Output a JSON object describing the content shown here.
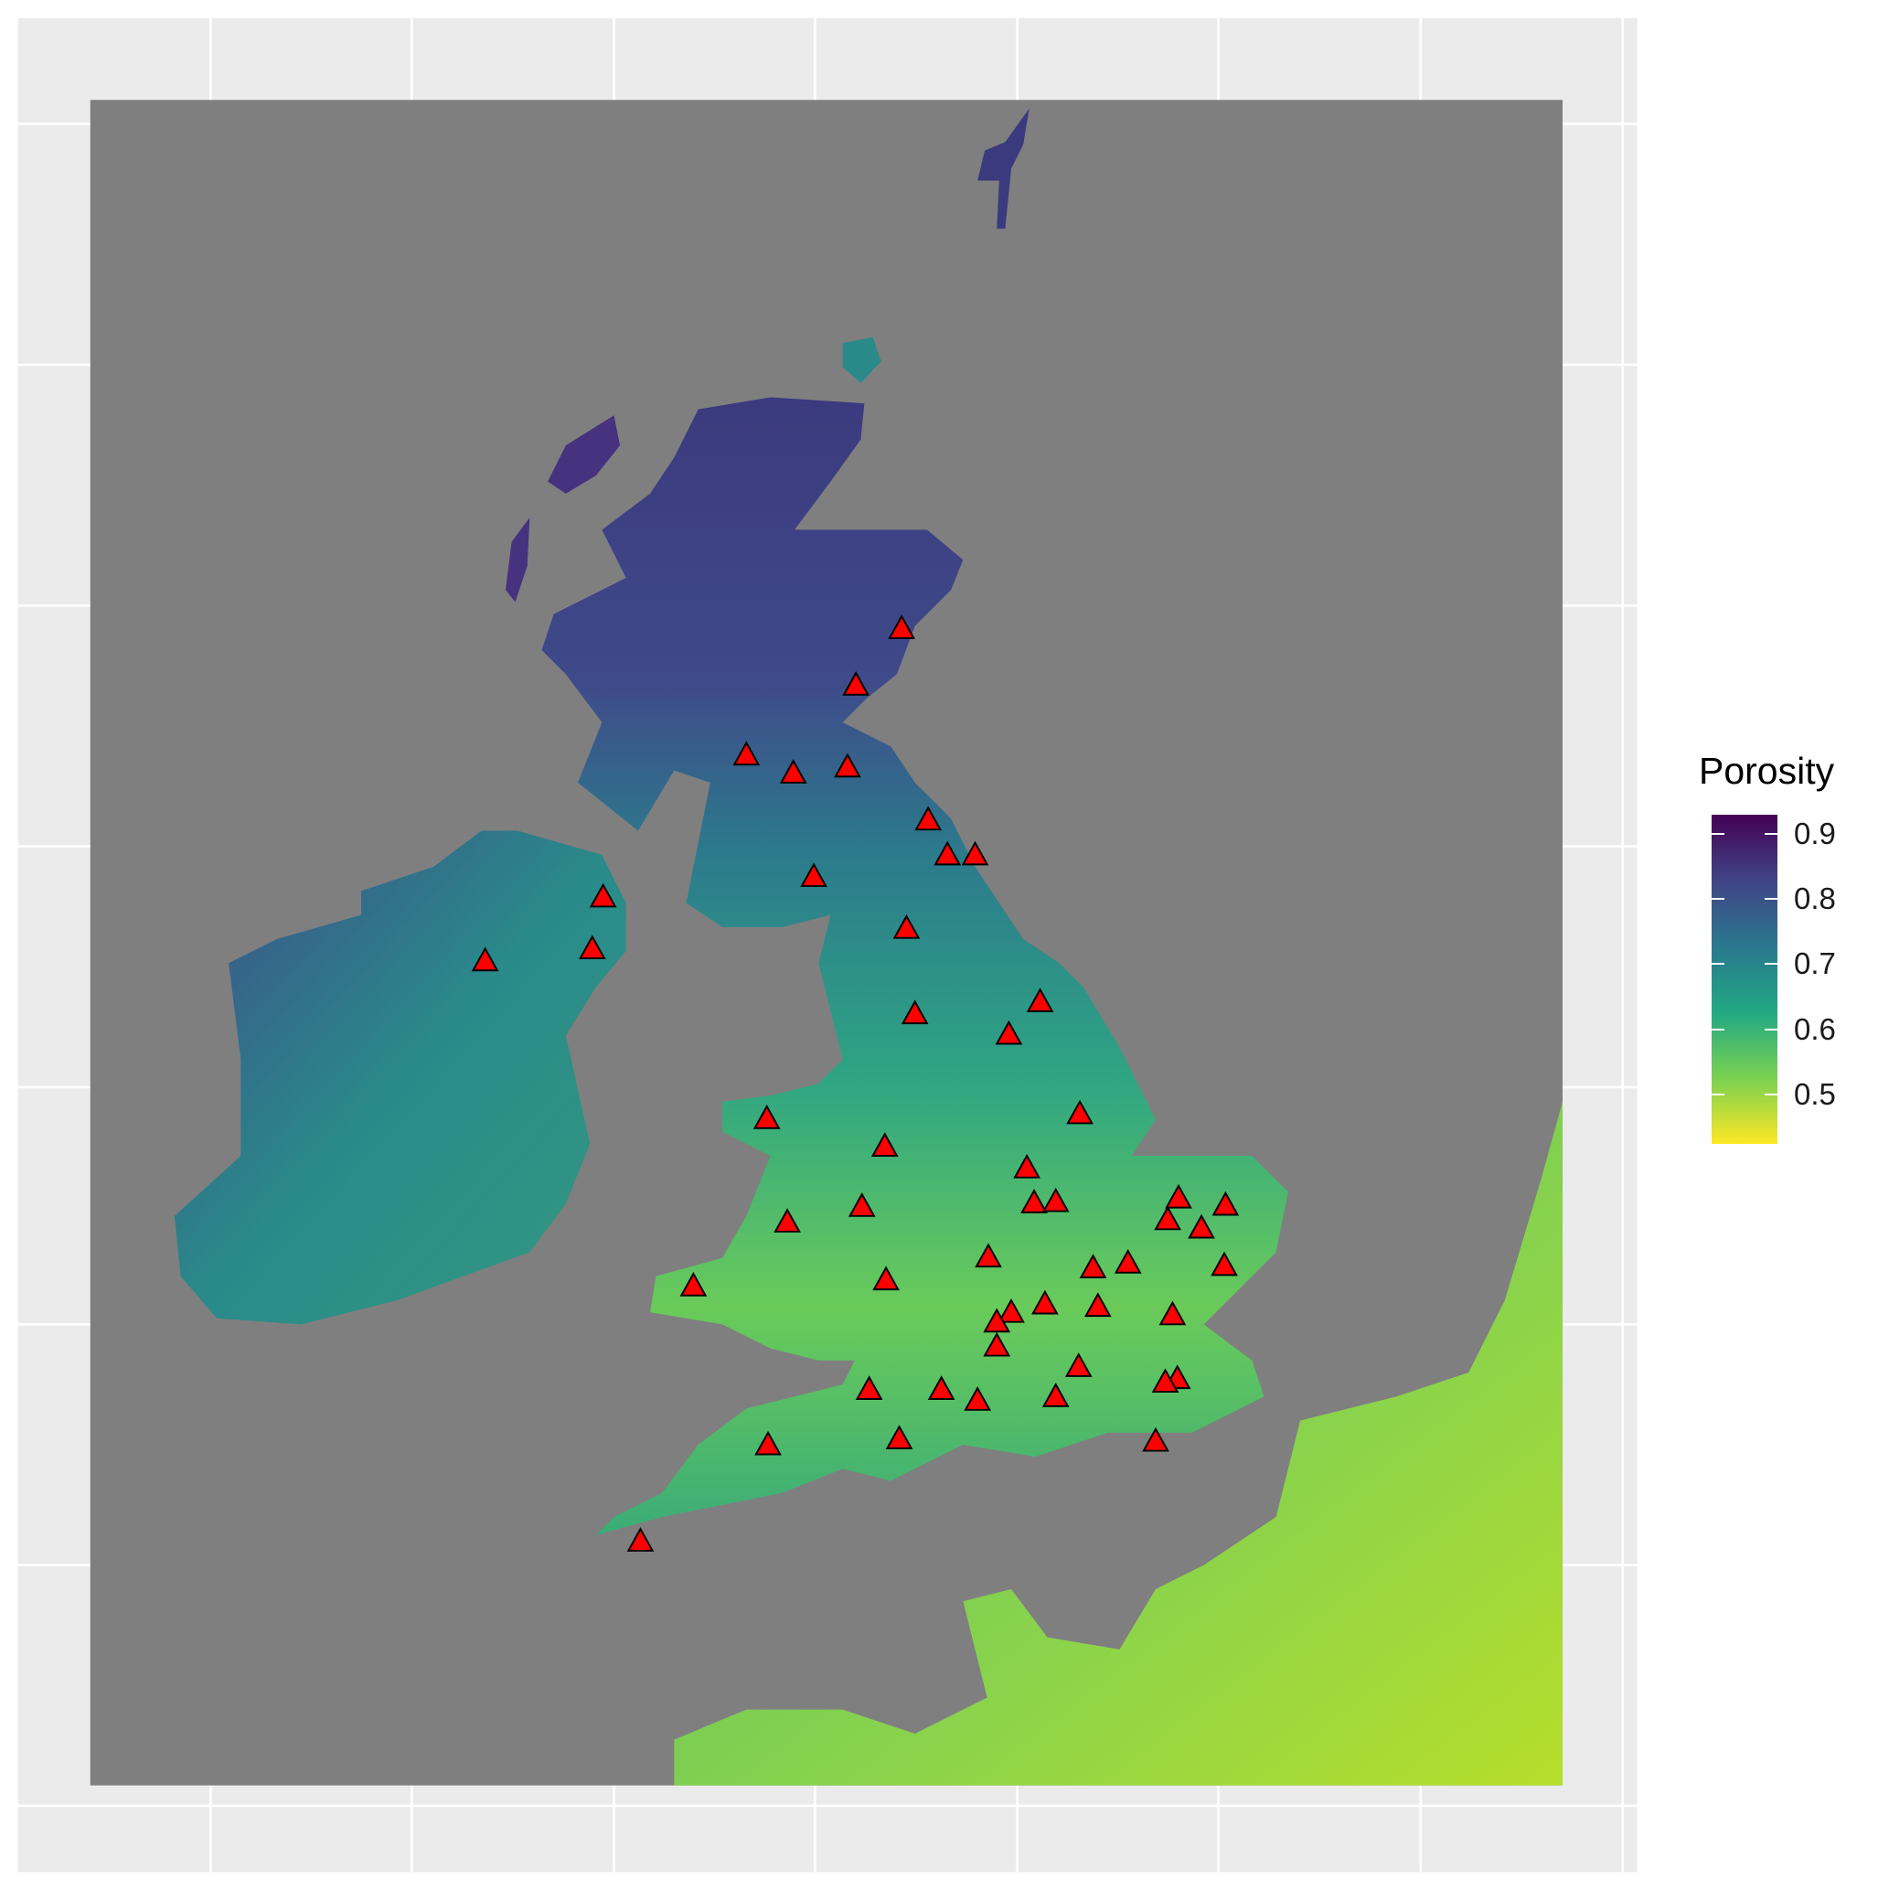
{
  "map": {
    "background_color": "#ebebeb",
    "raster_na_color": "#7f7f7f",
    "grid": true,
    "marker": {
      "shape": "triangle",
      "fill": "#ff0000",
      "stroke": "#000000"
    }
  },
  "legend": {
    "title": "Porosity",
    "ticks": [
      {
        "value": 0.9,
        "label": "0.9"
      },
      {
        "value": 0.8,
        "label": "0.8"
      },
      {
        "value": 0.7,
        "label": "0.7"
      },
      {
        "value": 0.6,
        "label": "0.6"
      },
      {
        "value": 0.5,
        "label": "0.5"
      }
    ],
    "range": [
      0.424,
      0.929
    ],
    "palette": [
      "#fde725",
      "#7ad151",
      "#22a884",
      "#2a788e",
      "#414487",
      "#440154"
    ],
    "position": "right"
  }
}
